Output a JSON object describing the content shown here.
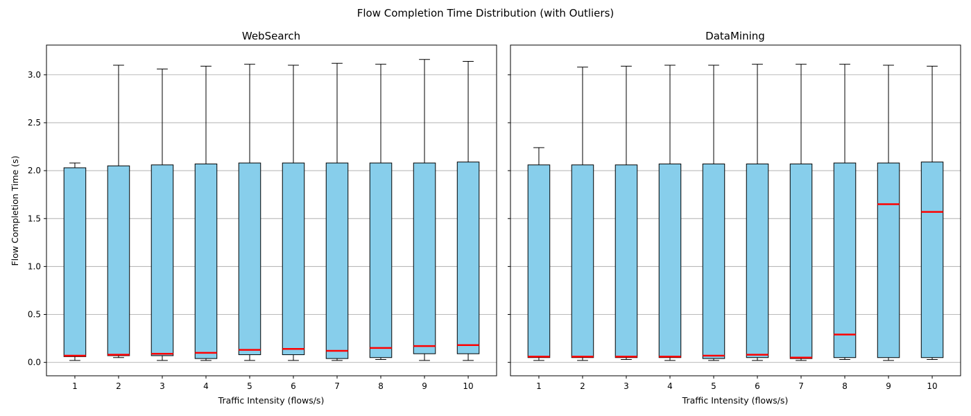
{
  "suptitle": "Flow Completion Time Distribution (with Outliers)",
  "chart_data": [
    {
      "type": "box",
      "title": "WebSearch",
      "xlabel": "Traffic Intensity (flows/s)",
      "ylabel": "Flow Completion Time (s)",
      "ylim": [
        -0.14,
        3.31
      ],
      "yticks": [
        "0.0",
        "0.5",
        "1.0",
        "1.5",
        "2.0",
        "2.5",
        "3.0"
      ],
      "grid": "y",
      "categories": [
        "1",
        "2",
        "3",
        "4",
        "5",
        "6",
        "7",
        "8",
        "9",
        "10"
      ],
      "boxes": [
        {
          "min": 0.02,
          "q1": 0.06,
          "median": 0.07,
          "q3": 2.03,
          "max": 2.08
        },
        {
          "min": 0.05,
          "q1": 0.07,
          "median": 0.08,
          "q3": 2.05,
          "max": 3.1
        },
        {
          "min": 0.02,
          "q1": 0.07,
          "median": 0.09,
          "q3": 2.06,
          "max": 3.06
        },
        {
          "min": 0.02,
          "q1": 0.04,
          "median": 0.1,
          "q3": 2.07,
          "max": 3.09
        },
        {
          "min": 0.02,
          "q1": 0.08,
          "median": 0.13,
          "q3": 2.08,
          "max": 3.11
        },
        {
          "min": 0.02,
          "q1": 0.08,
          "median": 0.14,
          "q3": 2.08,
          "max": 3.1
        },
        {
          "min": 0.02,
          "q1": 0.04,
          "median": 0.12,
          "q3": 2.08,
          "max": 3.12
        },
        {
          "min": 0.03,
          "q1": 0.05,
          "median": 0.15,
          "q3": 2.08,
          "max": 3.11
        },
        {
          "min": 0.02,
          "q1": 0.09,
          "median": 0.17,
          "q3": 2.08,
          "max": 3.16
        },
        {
          "min": 0.02,
          "q1": 0.09,
          "median": 0.18,
          "q3": 2.09,
          "max": 3.14
        }
      ]
    },
    {
      "type": "box",
      "title": "DataMining",
      "xlabel": "Traffic Intensity (flows/s)",
      "ylabel": "",
      "ylim": [
        -0.14,
        3.31
      ],
      "grid": "y",
      "categories": [
        "1",
        "2",
        "3",
        "4",
        "5",
        "6",
        "7",
        "8",
        "9",
        "10"
      ],
      "boxes": [
        {
          "min": 0.02,
          "q1": 0.05,
          "median": 0.06,
          "q3": 2.06,
          "max": 2.24
        },
        {
          "min": 0.02,
          "q1": 0.05,
          "median": 0.06,
          "q3": 2.06,
          "max": 3.08
        },
        {
          "min": 0.03,
          "q1": 0.05,
          "median": 0.06,
          "q3": 2.06,
          "max": 3.09
        },
        {
          "min": 0.02,
          "q1": 0.05,
          "median": 0.06,
          "q3": 2.07,
          "max": 3.1
        },
        {
          "min": 0.02,
          "q1": 0.04,
          "median": 0.07,
          "q3": 2.07,
          "max": 3.1
        },
        {
          "min": 0.02,
          "q1": 0.05,
          "median": 0.08,
          "q3": 2.07,
          "max": 3.11
        },
        {
          "min": 0.02,
          "q1": 0.04,
          "median": 0.05,
          "q3": 2.07,
          "max": 3.11
        },
        {
          "min": 0.03,
          "q1": 0.05,
          "median": 0.29,
          "q3": 2.08,
          "max": 3.11
        },
        {
          "min": 0.02,
          "q1": 0.05,
          "median": 1.65,
          "q3": 2.08,
          "max": 3.1
        },
        {
          "min": 0.03,
          "q1": 0.05,
          "median": 1.57,
          "q3": 2.09,
          "max": 3.09
        }
      ]
    }
  ],
  "colors": {
    "box_fill": "#87ceeb",
    "median": "#ff0000",
    "grid": "#b0b0b0",
    "edge": "#000000"
  }
}
